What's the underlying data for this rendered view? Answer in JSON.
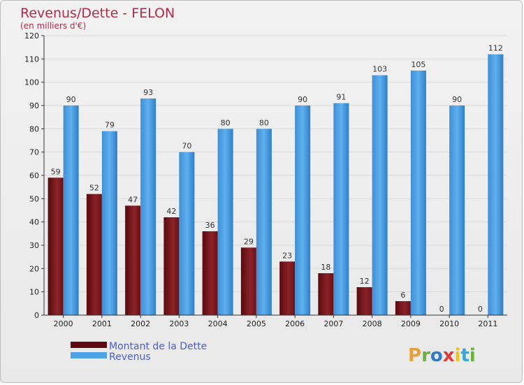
{
  "chart_data": {
    "type": "bar",
    "title": "Revenus/Dette - FELON",
    "subtitle": "(en milliers d'€)",
    "categories": [
      "2000",
      "2001",
      "2002",
      "2003",
      "2004",
      "2005",
      "2006",
      "2007",
      "2008",
      "2009",
      "2010",
      "2011"
    ],
    "series": [
      {
        "name": "Montant de la Dette",
        "values": [
          59,
          52,
          47,
          42,
          36,
          29,
          23,
          18,
          12,
          6,
          0,
          0
        ],
        "color": "#7a1a1e"
      },
      {
        "name": "Revenus",
        "values": [
          90,
          79,
          93,
          70,
          80,
          80,
          90,
          91,
          103,
          105,
          90,
          112
        ],
        "color": "#4da3e6"
      }
    ],
    "ylim": [
      0,
      120
    ],
    "yticks": [
      0,
      10,
      20,
      30,
      40,
      50,
      60,
      70,
      80,
      90,
      100,
      110,
      120
    ],
    "grid": true,
    "legend_position": "bottom-left",
    "xlabel": "",
    "ylabel": ""
  },
  "logo": {
    "text": "Proxiti"
  },
  "colors": {
    "title": "#b22a4b",
    "legend_text": "#4a5ed6",
    "grid": "#d9d9d9"
  }
}
